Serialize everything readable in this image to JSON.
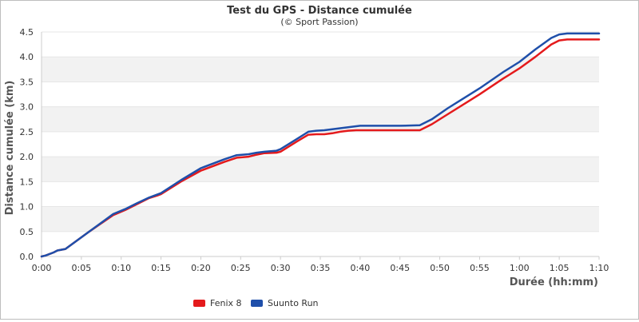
{
  "chart_data": {
    "type": "line",
    "title": "Test du GPS - Distance cumulée",
    "subtitle": "(© Sport Passion)",
    "xlabel": "Durée (hh:mm)",
    "ylabel": "Distance cumulée (km)",
    "x_ticks": [
      "0:00",
      "0:05",
      "0:10",
      "0:15",
      "0:20",
      "0:25",
      "0:30",
      "0:35",
      "0:40",
      "0:45",
      "0:50",
      "0:55",
      "1:00",
      "1:05",
      "1:10"
    ],
    "y_ticks": [
      "0.0",
      "0.5",
      "1.0",
      "1.5",
      "2.0",
      "2.5",
      "3.0",
      "3.5",
      "4.0",
      "4.5"
    ],
    "xlim_minutes": [
      0,
      70
    ],
    "ylim": [
      0,
      4.5
    ],
    "grid": "horizontal alternating bands",
    "legend_position": "bottom-left",
    "series": [
      {
        "name": "Fenix 8",
        "color": "#e41a1c",
        "x_minutes": [
          0,
          0.5,
          1.5,
          2,
          3,
          6,
          9,
          10.5,
          12,
          13.5,
          14.5,
          15,
          17.5,
          20,
          23,
          24.5,
          26,
          27,
          28,
          29.5,
          30,
          32,
          33.5,
          34.5,
          35.5,
          36.5,
          37.5,
          38.5,
          39.5,
          40,
          42,
          45,
          47.5,
          49,
          51,
          55,
          58,
          60,
          62,
          64,
          65,
          66,
          68,
          70
        ],
        "values": [
          0.0,
          0.02,
          0.08,
          0.12,
          0.15,
          0.5,
          0.83,
          0.93,
          1.05,
          1.17,
          1.22,
          1.25,
          1.5,
          1.72,
          1.9,
          1.98,
          2.0,
          2.04,
          2.07,
          2.08,
          2.1,
          2.3,
          2.44,
          2.45,
          2.45,
          2.47,
          2.5,
          2.52,
          2.53,
          2.53,
          2.53,
          2.53,
          2.53,
          2.65,
          2.85,
          3.25,
          3.57,
          3.77,
          4.0,
          4.25,
          4.33,
          4.35,
          4.35,
          4.35
        ]
      },
      {
        "name": "Suunto Run",
        "color": "#1f4faa",
        "x_minutes": [
          0,
          0.5,
          1.5,
          2,
          3,
          6,
          9,
          10.5,
          12,
          13.5,
          14.5,
          15,
          17.5,
          20,
          23,
          24.5,
          26,
          27,
          28,
          29.5,
          30,
          32,
          33.5,
          34.5,
          35.5,
          36.5,
          37.5,
          38.5,
          39.5,
          40,
          42,
          45,
          47.5,
          49,
          51,
          55,
          58,
          60,
          62,
          64,
          65,
          66,
          68,
          70
        ],
        "values": [
          0.0,
          0.02,
          0.08,
          0.12,
          0.15,
          0.5,
          0.85,
          0.95,
          1.07,
          1.18,
          1.24,
          1.27,
          1.53,
          1.77,
          1.95,
          2.03,
          2.05,
          2.08,
          2.1,
          2.12,
          2.15,
          2.35,
          2.5,
          2.52,
          2.53,
          2.55,
          2.57,
          2.59,
          2.61,
          2.62,
          2.62,
          2.62,
          2.63,
          2.75,
          2.97,
          3.37,
          3.7,
          3.9,
          4.15,
          4.38,
          4.45,
          4.47,
          4.47,
          4.47
        ]
      }
    ]
  }
}
